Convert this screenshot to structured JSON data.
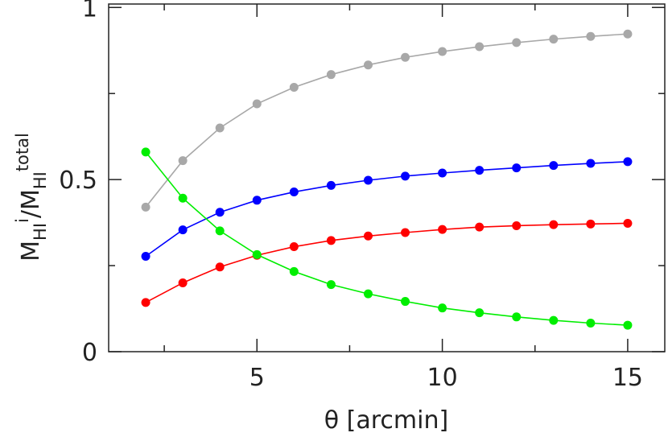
{
  "chart_data": {
    "type": "line",
    "title": "",
    "xlabel": "θ [arcmin]",
    "ylabel": {
      "base1": "M",
      "sub1": "HI",
      "sup1": "i",
      "slash": "/",
      "base2": "M",
      "sub2": "HI",
      "sup2": "total"
    },
    "xlim": [
      1,
      16
    ],
    "ylim": [
      0,
      1.01
    ],
    "xticks": [
      5,
      10,
      15
    ],
    "xtick_labels": [
      "5",
      "10",
      "15"
    ],
    "xminor": [
      2.5,
      7.5,
      12.5
    ],
    "yticks": [
      0,
      0.5,
      1
    ],
    "ytick_labels": [
      "0",
      "0.5",
      "1"
    ],
    "yminor": [
      0.25,
      0.75
    ],
    "grid": false,
    "x": [
      2,
      3,
      4,
      5,
      6,
      7,
      8,
      9,
      10,
      11,
      12,
      13,
      14,
      15
    ],
    "series": [
      {
        "color": "#a8a8a8",
        "values": [
          0.42,
          0.555,
          0.65,
          0.72,
          0.768,
          0.805,
          0.833,
          0.855,
          0.872,
          0.886,
          0.898,
          0.908,
          0.916,
          0.923
        ]
      },
      {
        "color": "#0000ff",
        "values": [
          0.277,
          0.354,
          0.405,
          0.44,
          0.464,
          0.483,
          0.498,
          0.51,
          0.519,
          0.527,
          0.534,
          0.541,
          0.547,
          0.552
        ]
      },
      {
        "color": "#ff0000",
        "values": [
          0.143,
          0.2,
          0.246,
          0.28,
          0.305,
          0.323,
          0.336,
          0.346,
          0.355,
          0.362,
          0.366,
          0.369,
          0.371,
          0.373
        ]
      },
      {
        "color": "#00ee00",
        "values": [
          0.58,
          0.446,
          0.351,
          0.282,
          0.233,
          0.195,
          0.168,
          0.146,
          0.127,
          0.113,
          0.101,
          0.091,
          0.083,
          0.077
        ]
      }
    ]
  }
}
